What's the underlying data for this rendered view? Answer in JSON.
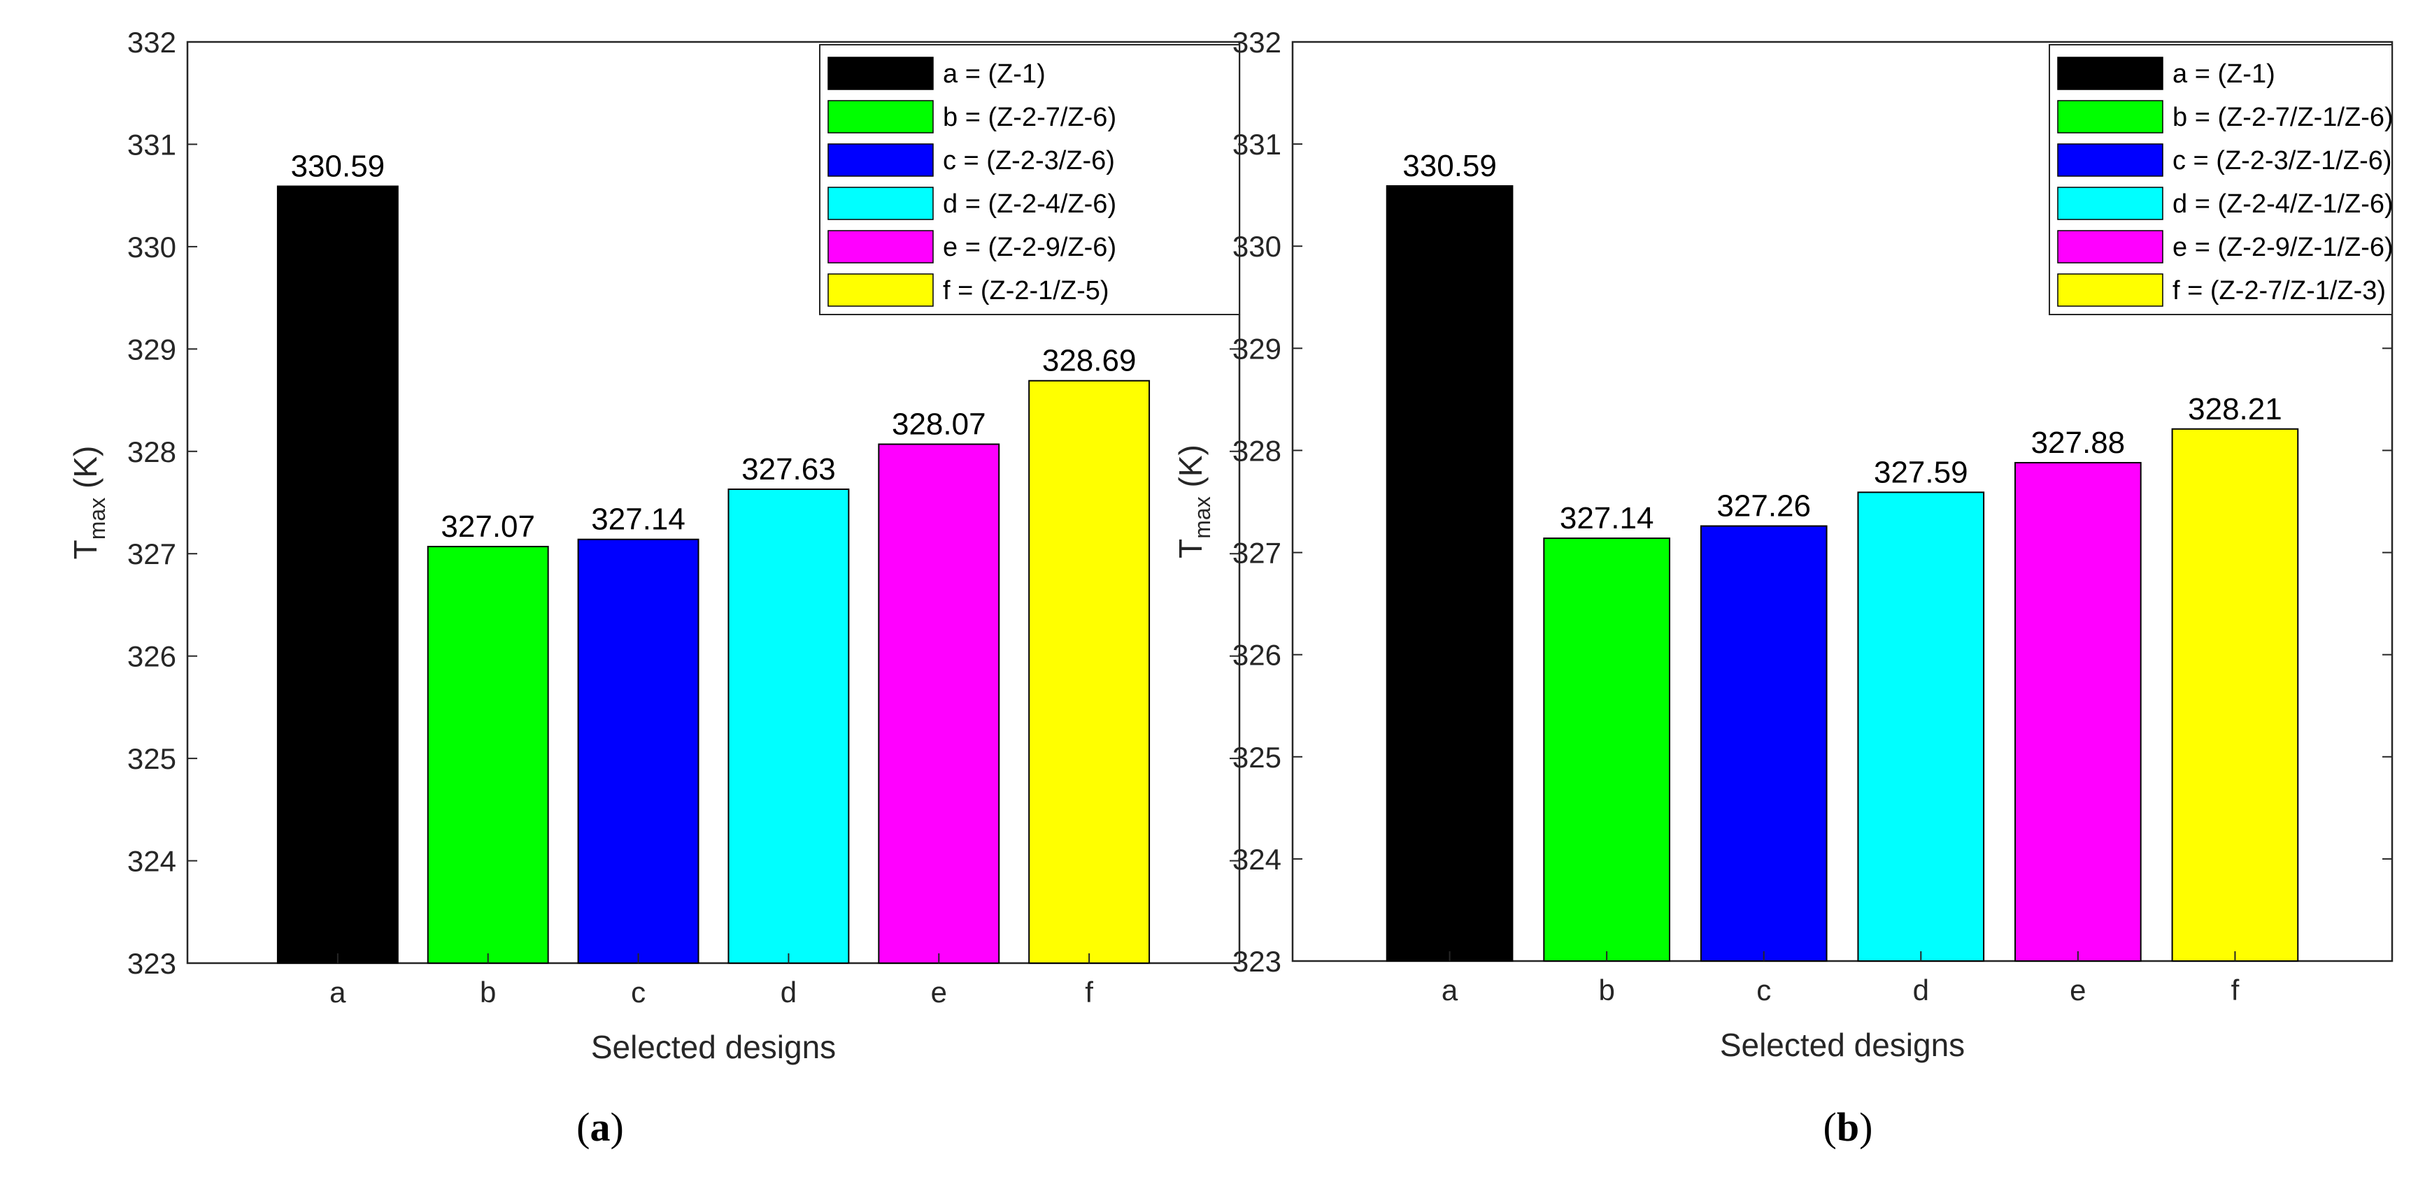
{
  "chart_data": [
    {
      "type": "bar",
      "panel_label": "a",
      "title": "",
      "xlabel": "Selected designs",
      "ylabel": "T",
      "ylabel_subscript": "max",
      "ylabel_unit": "(K)",
      "categories": [
        "a",
        "b",
        "c",
        "d",
        "e",
        "f"
      ],
      "values": [
        330.59,
        327.07,
        327.14,
        327.63,
        328.07,
        328.69
      ],
      "value_labels": [
        "330.59",
        "327.07",
        "327.14",
        "327.63",
        "328.07",
        "328.69"
      ],
      "colors": [
        "#000000",
        "#00ff00",
        "#0000ff",
        "#00ffff",
        "#ff00ff",
        "#ffff00"
      ],
      "legend": [
        "a = (Z-1)",
        "b = (Z-2-7/Z-6)",
        "c = (Z-2-3/Z-6)",
        "d = (Z-2-4/Z-6)",
        "e = (Z-2-9/Z-6)",
        "f = (Z-2-1/Z-5)"
      ],
      "legend_position": "top-right",
      "ylim": [
        323,
        332
      ],
      "yticks": [
        323,
        324,
        325,
        326,
        327,
        328,
        329,
        330,
        331,
        332
      ],
      "grid": false
    },
    {
      "type": "bar",
      "panel_label": "b",
      "title": "",
      "xlabel": "Selected designs",
      "ylabel": "T",
      "ylabel_subscript": "max",
      "ylabel_unit": "(K)",
      "categories": [
        "a",
        "b",
        "c",
        "d",
        "e",
        "f"
      ],
      "values": [
        330.59,
        327.14,
        327.26,
        327.59,
        327.88,
        328.21
      ],
      "value_labels": [
        "330.59",
        "327.14",
        "327.26",
        "327.59",
        "327.88",
        "328.21"
      ],
      "colors": [
        "#000000",
        "#00ff00",
        "#0000ff",
        "#00ffff",
        "#ff00ff",
        "#ffff00"
      ],
      "legend": [
        "a = (Z-1)",
        "b = (Z-2-7/Z-1/Z-6)",
        "c = (Z-2-3/Z-1/Z-6)",
        "d = (Z-2-4/Z-1/Z-6)",
        "e = (Z-2-9/Z-1/Z-6)",
        "f = (Z-2-7/Z-1/Z-3)"
      ],
      "legend_position": "top-right",
      "ylim": [
        323,
        332
      ],
      "yticks": [
        323,
        324,
        325,
        326,
        327,
        328,
        329,
        330,
        331,
        332
      ],
      "grid": false
    }
  ]
}
